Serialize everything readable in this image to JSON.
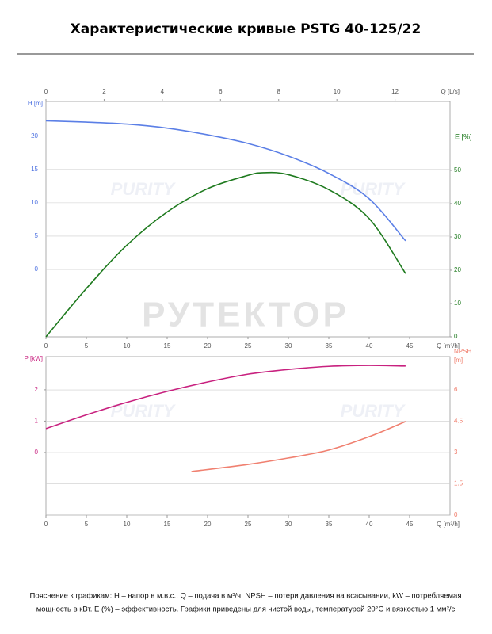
{
  "header": {
    "title": "Характеристические кривые PSTG 40-125/22"
  },
  "watermarks": [
    "PURITY",
    "РУТЕКТОР"
  ],
  "chart_data": [
    {
      "type": "line",
      "x_label": "Q [m³/h]",
      "x2_label": "Q [L/s]",
      "y_label": "H [m]",
      "y2_label": "E [%]",
      "xlim": [
        0,
        50
      ],
      "xticks": [
        0,
        5,
        10,
        15,
        20,
        25,
        30,
        35,
        40,
        45
      ],
      "x2lim": [
        0,
        13.89
      ],
      "x2ticks": [
        0,
        2,
        4,
        6,
        8,
        10,
        12
      ],
      "ylim": [
        -10.1,
        25.2
      ],
      "yticks": [
        0,
        5,
        10,
        15,
        20
      ],
      "y2lim": [
        0,
        70.7
      ],
      "y2ticks": [
        0,
        10,
        20,
        30,
        40,
        50
      ],
      "grid": "y",
      "y_color": "#4a6fe0",
      "y2_color": "#1e7a1e",
      "series": [
        {
          "color": "#5b7fe6",
          "x": [
            0,
            5,
            10,
            15,
            20,
            25,
            30,
            35,
            40,
            44.5
          ],
          "values": [
            22.3,
            22.1,
            21.8,
            21.2,
            20.2,
            18.9,
            17.0,
            14.4,
            10.6,
            4.3
          ]
        },
        {
          "color": "#1e7a1e",
          "axis": "y2",
          "x": [
            0,
            5,
            10,
            15,
            20,
            25,
            27,
            30,
            35,
            40,
            44.5
          ],
          "values": [
            0,
            14.5,
            27.5,
            37.5,
            44.5,
            48.5,
            49.3,
            48.7,
            44.2,
            35.5,
            19
          ]
        }
      ]
    },
    {
      "type": "line",
      "x_label": "Q [m³/h]",
      "y_label": "P [kW]",
      "y2_label": [
        "NPSH",
        "[m]"
      ],
      "xlim": [
        0,
        50
      ],
      "xticks": [
        0,
        5,
        10,
        15,
        20,
        25,
        30,
        35,
        40,
        45
      ],
      "ylim": [
        -2,
        3.06
      ],
      "yticks": [
        0,
        1,
        2
      ],
      "y2lim": [
        0,
        7.6
      ],
      "y2ticks": [
        0,
        1.5,
        3,
        4.5,
        6
      ],
      "grid": "y2",
      "y_color": "#c8217f",
      "y2_color": "#f07a68",
      "series": [
        {
          "color": "#c8217f",
          "x": [
            0,
            5,
            10,
            15,
            20,
            25,
            30,
            35,
            40,
            44.5
          ],
          "values": [
            0.76,
            1.2,
            1.6,
            1.95,
            2.25,
            2.5,
            2.65,
            2.75,
            2.78,
            2.76
          ]
        },
        {
          "color": "#f08070",
          "axis": "y2",
          "x": [
            18,
            25,
            30,
            35,
            40,
            44.5
          ],
          "values": [
            2.09,
            2.43,
            2.74,
            3.12,
            3.76,
            4.49
          ]
        }
      ]
    }
  ],
  "footer": {
    "lines": [
      "Пояснение к графикам: H – напор в м.в.с., Q – подача в м³/ч, NPSH – потери давления на всасывании, kW – потребляемая",
      "мощность в кВт. E (%) – эффективность.  Графики приведены для чистой воды, температурой 20°C и вязкостью 1 мм²/с"
    ]
  }
}
